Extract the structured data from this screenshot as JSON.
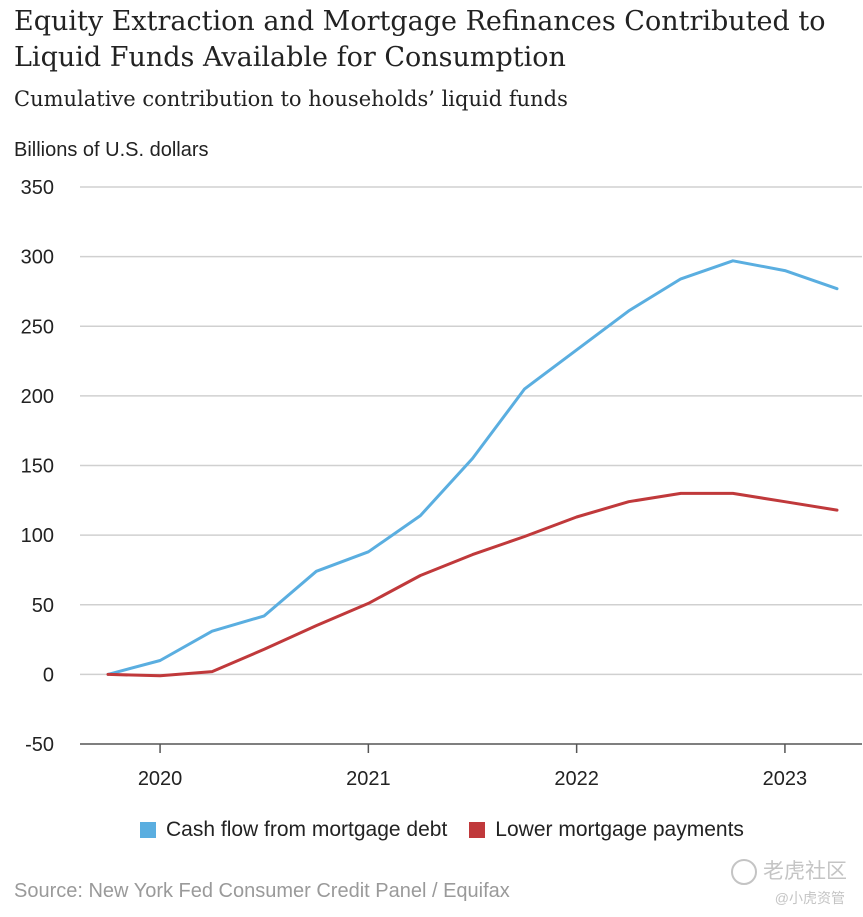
{
  "header": {
    "title": "Equity Extraction and Mortgage Refinances Contributed to Liquid Funds Available for Consumption",
    "subtitle": "Cumulative contribution to households’ liquid funds"
  },
  "footer": {
    "source": "Source: New York Fed Consumer Credit Panel / Equifax",
    "watermark": "老虎社区",
    "watermark_sub": "@小虎资管"
  },
  "chart_data": {
    "type": "line",
    "ylabel": "Billions of U.S. dollars",
    "ylim": [
      -50,
      350
    ],
    "yticks": [
      -50,
      0,
      50,
      100,
      150,
      200,
      250,
      300,
      350
    ],
    "xlim": [
      2019.75,
      2023.25
    ],
    "xticks": [
      2020,
      2021,
      2022,
      2023
    ],
    "grid": "horizontal",
    "legend_position": "bottom",
    "colors": {
      "cash_flow": "#5aaee0",
      "lower_payments": "#c0393b",
      "grid": "#d0d0d0",
      "axis": "#555555"
    },
    "x": [
      2019.75,
      2020.0,
      2020.25,
      2020.5,
      2020.75,
      2021.0,
      2021.25,
      2021.5,
      2021.75,
      2022.0,
      2022.25,
      2022.5,
      2022.75,
      2023.0,
      2023.25
    ],
    "series": [
      {
        "name": "Cash flow from mortgage debt",
        "key": "cash_flow",
        "values": [
          0,
          10,
          31,
          42,
          74,
          88,
          114,
          155,
          205,
          233,
          261,
          284,
          297,
          290,
          277
        ]
      },
      {
        "name": "Lower mortgage payments",
        "key": "lower_payments",
        "values": [
          0,
          -1,
          2,
          18,
          35,
          51,
          71,
          86,
          99,
          113,
          124,
          130,
          130,
          124,
          118
        ]
      }
    ]
  }
}
